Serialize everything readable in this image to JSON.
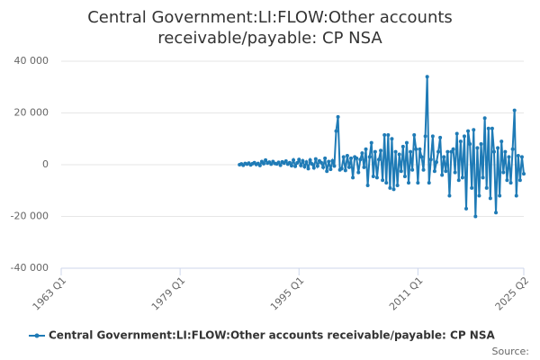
{
  "chart_data": {
    "type": "line",
    "title": "Central Government:LI:FLOW:Other accounts receivable/payable: CP NSA",
    "source": "Source:",
    "xlim": [
      1963,
      2025.25
    ],
    "xticks": [
      {
        "value": 1963,
        "label": "1963 Q1"
      },
      {
        "value": 1979,
        "label": "1979 Q1"
      },
      {
        "value": 1995,
        "label": "1995 Q1"
      },
      {
        "value": 2011,
        "label": "2011 Q1"
      },
      {
        "value": 2025.25,
        "label": "2025 Q2"
      }
    ],
    "ylim": [
      -40000,
      40000
    ],
    "yticks": [
      {
        "value": -40000,
        "label": "-40 000"
      },
      {
        "value": -20000,
        "label": "-20 000"
      },
      0,
      {
        "value": 20000,
        "label": "20 000"
      },
      {
        "value": 40000,
        "label": "40 000"
      }
    ],
    "grid": true,
    "legend": "bottom",
    "x": [
      1987,
      1987.25,
      1987.5,
      1987.75,
      1988,
      1988.25,
      1988.5,
      1988.75,
      1989,
      1989.25,
      1989.5,
      1989.75,
      1990,
      1990.25,
      1990.5,
      1990.75,
      1991,
      1991.25,
      1991.5,
      1991.75,
      1992,
      1992.25,
      1992.5,
      1992.75,
      1993,
      1993.25,
      1993.5,
      1993.75,
      1994,
      1994.25,
      1994.5,
      1994.75,
      1995,
      1995.25,
      1995.5,
      1995.75,
      1996,
      1996.25,
      1996.5,
      1996.75,
      1997,
      1997.25,
      1997.5,
      1997.75,
      1998,
      1998.25,
      1998.5,
      1998.75,
      1999,
      1999.25,
      1999.5,
      1999.75,
      2000,
      2000.25,
      2000.5,
      2000.75,
      2001,
      2001.25,
      2001.5,
      2001.75,
      2002,
      2002.25,
      2002.5,
      2002.75,
      2003,
      2003.25,
      2003.5,
      2003.75,
      2004,
      2004.25,
      2004.5,
      2004.75,
      2005,
      2005.25,
      2005.5,
      2005.75,
      2006,
      2006.25,
      2006.5,
      2006.75,
      2007,
      2007.25,
      2007.5,
      2007.75,
      2008,
      2008.25,
      2008.5,
      2008.75,
      2009,
      2009.25,
      2009.5,
      2009.75,
      2010,
      2010.25,
      2010.5,
      2010.75,
      2011,
      2011.25,
      2011.5,
      2011.75,
      2012,
      2012.25,
      2012.5,
      2012.75,
      2013,
      2013.25,
      2013.5,
      2013.75,
      2014,
      2014.25,
      2014.5,
      2014.75,
      2015,
      2015.25,
      2015.5,
      2015.75,
      2016,
      2016.25,
      2016.5,
      2016.75,
      2017,
      2017.25,
      2017.5,
      2017.75,
      2018,
      2018.25,
      2018.5,
      2018.75,
      2019,
      2019.25,
      2019.5,
      2019.75,
      2020,
      2020.25,
      2020.5,
      2020.75,
      2021,
      2021.25,
      2021.5,
      2021.75,
      2022,
      2022.25,
      2022.5,
      2022.75,
      2023,
      2023.25,
      2023.5,
      2023.75,
      2024,
      2024.25,
      2024.5,
      2024.75,
      2025,
      2025.25
    ],
    "series": [
      {
        "name": "Central Government:LI:FLOW:Other accounts receivable/payable: CP NSA",
        "color": "#1f7bb6",
        "values": [
          0,
          300,
          -200,
          500,
          200,
          600,
          -100,
          400,
          800,
          100,
          500,
          -300,
          1200,
          400,
          1800,
          600,
          1000,
          200,
          1200,
          500,
          300,
          900,
          -200,
          1100,
          600,
          1400,
          200,
          800,
          -400,
          1800,
          -600,
          700,
          2000,
          -300,
          1500,
          -800,
          1000,
          -1500,
          1800,
          300,
          -1200,
          2200,
          -500,
          1500,
          800,
          -1000,
          2500,
          -2500,
          1200,
          -1800,
          1500,
          -500,
          13000,
          18500,
          -2000,
          -1500,
          3000,
          -2200,
          3500,
          -1000,
          2500,
          -5000,
          3000,
          2500,
          -3000,
          2000,
          4500,
          -1000,
          6000,
          -8000,
          3000,
          8500,
          -4500,
          5000,
          -5000,
          2000,
          5500,
          -6000,
          11500,
          -7000,
          11500,
          -9000,
          10000,
          -9500,
          5000,
          -8000,
          4000,
          -2500,
          7000,
          -4500,
          8500,
          -7000,
          5000,
          -2000,
          11500,
          6000,
          -7000,
          6000,
          3000,
          -2000,
          11000,
          34000,
          -7000,
          2000,
          11000,
          -2500,
          1000,
          5000,
          10500,
          -4000,
          3000,
          -2500,
          5000,
          -12000,
          5000,
          6000,
          -3000,
          12000,
          -6000,
          9000,
          -5000,
          11000,
          -17000,
          13000,
          8000,
          -9000,
          13500,
          -20000,
          6500,
          -12000,
          8000,
          -5000,
          18000,
          -9000,
          14000,
          -13000,
          14000,
          5000,
          -18500,
          6500,
          -12000,
          9000,
          -3000,
          5000,
          -6000,
          3000,
          -7000,
          6000,
          21000,
          -12000,
          3500,
          -6000,
          3000,
          -3500
        ]
      }
    ]
  }
}
